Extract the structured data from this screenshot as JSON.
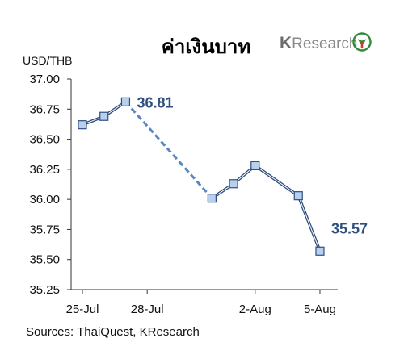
{
  "header": {
    "title": "ค่าเงินบาท",
    "logo": {
      "k": "K",
      "rest": "Research",
      "icon": "kbank-leaf-icon"
    }
  },
  "footer": {
    "source": "Sources: ThaiQuest, KResearch"
  },
  "colors": {
    "line": "#2f4f7f",
    "line_highlight": "#ffffff",
    "marker_fill": "#b9cfee",
    "marker_stroke": "#2f4f7f",
    "dashed": "#5b86c4",
    "label": "#2f4f7f",
    "logo_green": "#2e8b3a",
    "logo_red": "#d23a2a"
  },
  "chart_data": {
    "type": "line",
    "ylabel": "USD/THB",
    "ylim": [
      35.25,
      37.0
    ],
    "yticks": [
      "37.00",
      "36.75",
      "36.50",
      "36.25",
      "36.00",
      "35.75",
      "35.50",
      "35.25"
    ],
    "x_tick_labels": [
      "25-Jul",
      "28-Jul",
      "2-Aug",
      "5-Aug"
    ],
    "x_tick_days": [
      "2019-07-25",
      "2019-07-28",
      "2019-08-02",
      "2019-08-05"
    ],
    "xlim": [
      "2019-07-25",
      "2019-08-06"
    ],
    "series": [
      {
        "points": [
          {
            "x": "2019-07-25",
            "y": 36.62
          },
          {
            "x": "2019-07-26",
            "y": 36.69
          },
          {
            "x": "2019-07-27",
            "y": 36.81
          },
          {
            "x": "2019-07-31",
            "y": 36.01
          },
          {
            "x": "2019-08-01",
            "y": 36.13
          },
          {
            "x": "2019-08-02",
            "y": 36.28
          },
          {
            "x": "2019-08-04",
            "y": 36.03
          },
          {
            "x": "2019-08-05",
            "y": 35.57
          }
        ],
        "dashed_segments": [
          [
            2,
            3
          ]
        ]
      }
    ],
    "annotations": [
      {
        "point_index": 2,
        "text": "36.81"
      },
      {
        "point_index": 7,
        "text": "35.57"
      }
    ],
    "grid": false,
    "legend": "none"
  }
}
